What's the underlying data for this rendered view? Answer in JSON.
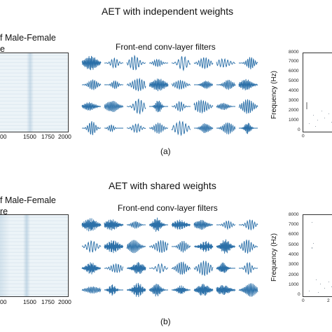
{
  "panel_a": {
    "title": "AET with independent weights",
    "left_text_1": "f Male-Female",
    "left_text_2": "e",
    "filters_title": "Front-end conv-layer filters",
    "heat_xticks": [
      "00",
      "1500",
      "1750",
      "2000"
    ],
    "spec_yticks": [
      "8000",
      "7000",
      "6000",
      "5000",
      "4000",
      "3000",
      "2000",
      "1000",
      "0"
    ],
    "spec_ylabel": "Frequency (Hz)",
    "spec_xticks": [
      "0"
    ],
    "caption": "(a)"
  },
  "panel_b": {
    "title": "AET with shared weights",
    "left_text_1": "f Male-Female",
    "left_text_2": "re",
    "filters_title": "Front-end conv-layer filters",
    "heat_xticks": [
      "00",
      "1500",
      "1750",
      "2000"
    ],
    "spec_yticks": [
      "8000",
      "7000",
      "6000",
      "5000",
      "4000",
      "3000",
      "2000",
      "1000",
      "0"
    ],
    "spec_ylabel": "Frequency (Hz)",
    "spec_xticks": [
      "0",
      "2"
    ],
    "caption": "(b)"
  },
  "colors": {
    "waveform": "#2a6fa8",
    "heatmap_blue": "#9cbcd3"
  }
}
